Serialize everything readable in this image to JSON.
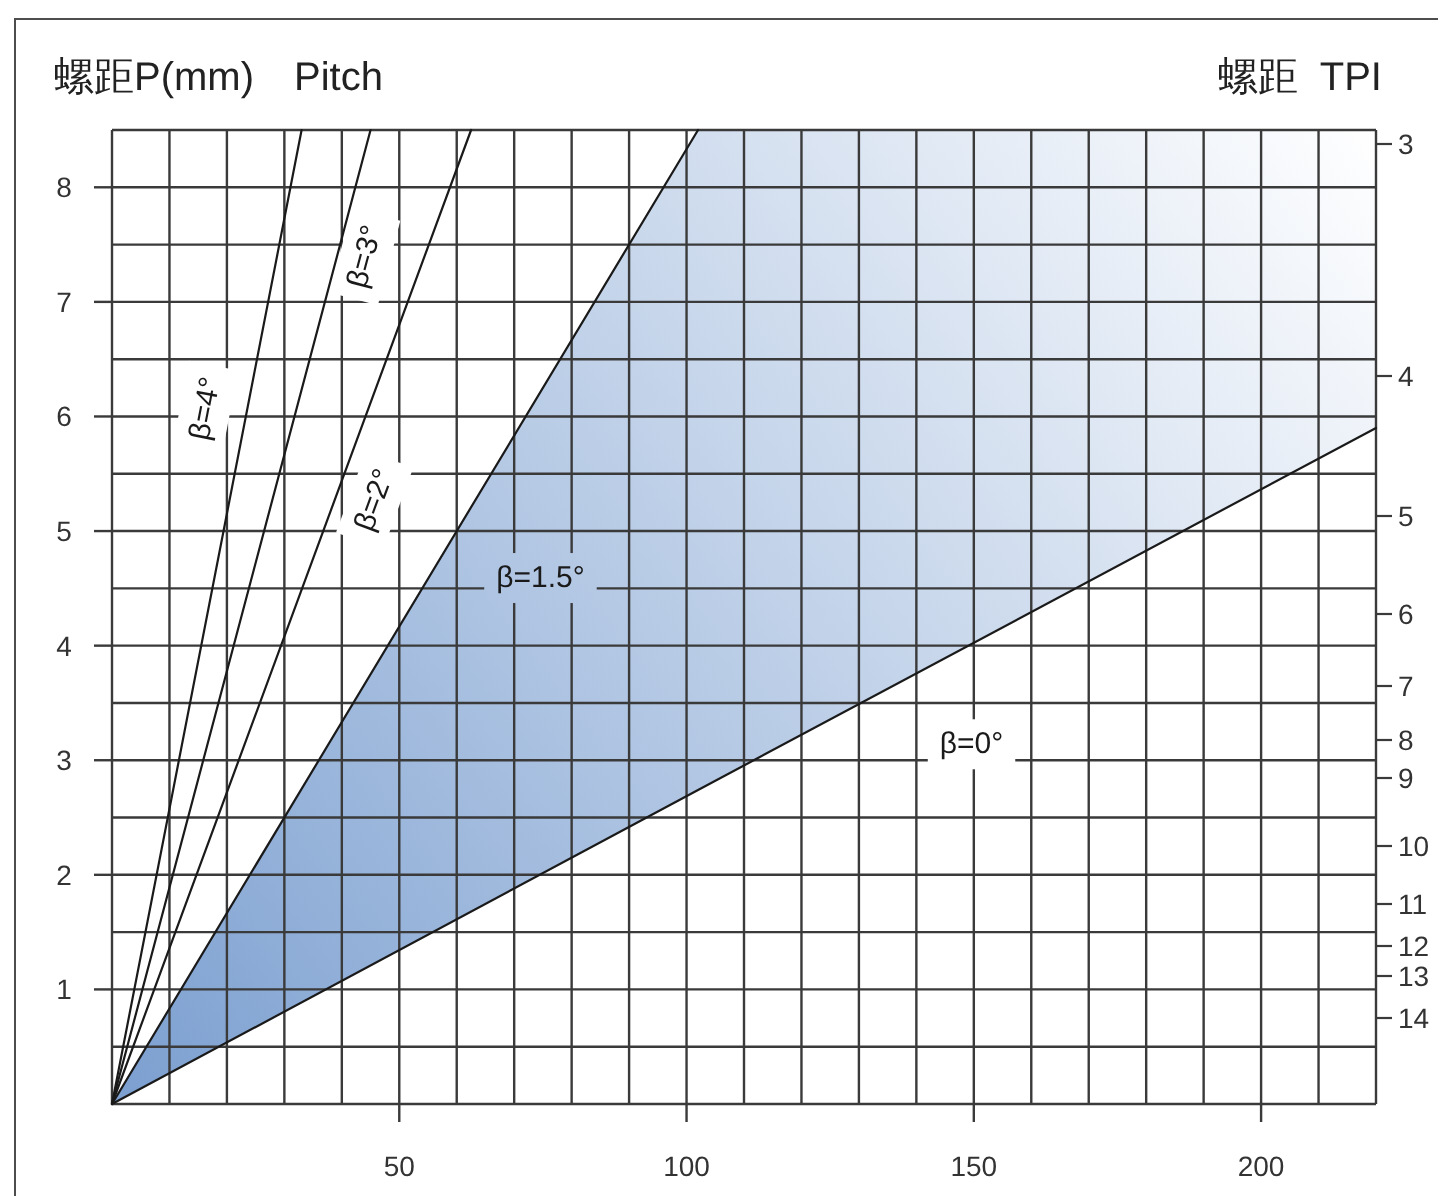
{
  "chart_data": {
    "type": "line",
    "ylabel": "螺距P(mm)　Pitch",
    "y2label": "螺距  TPI",
    "xlim": [
      0,
      220
    ],
    "xticks": [
      {
        "value": 0,
        "label": null
      },
      {
        "value": 10,
        "label": null
      },
      {
        "value": 20,
        "label": null
      },
      {
        "value": 30,
        "label": null
      },
      {
        "value": 40,
        "label": null
      },
      50,
      {
        "value": 60,
        "label": null
      },
      {
        "value": 70,
        "label": null
      },
      {
        "value": 80,
        "label": null
      },
      {
        "value": 90,
        "label": null
      },
      100,
      {
        "value": 110,
        "label": null
      },
      {
        "value": 120,
        "label": null
      },
      {
        "value": 130,
        "label": null
      },
      {
        "value": 140,
        "label": null
      },
      150,
      {
        "value": 160,
        "label": null
      },
      {
        "value": 170,
        "label": null
      },
      {
        "value": 180,
        "label": null
      },
      {
        "value": 190,
        "label": null
      },
      200,
      {
        "value": 210,
        "label": null
      },
      {
        "value": 220,
        "label": null
      }
    ],
    "ylim": [
      0,
      8.5
    ],
    "yticks": [
      {
        "value": 0,
        "label": null
      },
      {
        "value": 0.5,
        "label": null
      },
      1,
      {
        "value": 1.5,
        "label": null
      },
      2,
      {
        "value": 2.5,
        "label": null
      },
      3,
      {
        "value": 3.5,
        "label": null
      },
      4,
      {
        "value": 4.5,
        "label": null
      },
      5,
      {
        "value": 5.5,
        "label": null
      },
      6,
      {
        "value": 6.5,
        "label": null
      },
      7,
      {
        "value": 7.5,
        "label": null
      },
      8,
      {
        "value": 8.5,
        "label": null
      }
    ],
    "annotations": [
      "3",
      "4",
      "5",
      "6",
      "7",
      "8",
      "9",
      "10",
      "11",
      "12",
      "13",
      "14"
    ],
    "grid": true,
    "series": [
      {
        "name": "β=4°",
        "color": "#1a1a1a",
        "x": [
          0,
          33
        ],
        "values": [
          0,
          8.5
        ]
      },
      {
        "name": "β=3°",
        "color": "#1a1a1a",
        "x": [
          0,
          45
        ],
        "values": [
          0,
          8.5
        ]
      },
      {
        "name": "β=2°",
        "color": "#1a1a1a",
        "x": [
          0,
          62.5
        ],
        "values": [
          0,
          8.5
        ]
      },
      {
        "name": "β=1.5°",
        "color": "#1a1a1a",
        "x": [
          0,
          102
        ],
        "values": [
          0,
          8.5
        ]
      },
      {
        "name": "β=0°",
        "color": "#1a1a1a",
        "x": [
          0,
          102,
          220
        ],
        "values": [
          0,
          2.74,
          5.9
        ],
        "lower": [
          0,
          2.74,
          5.9
        ],
        "upper": [
          0,
          8.5,
          8.5
        ]
      }
    ]
  }
}
